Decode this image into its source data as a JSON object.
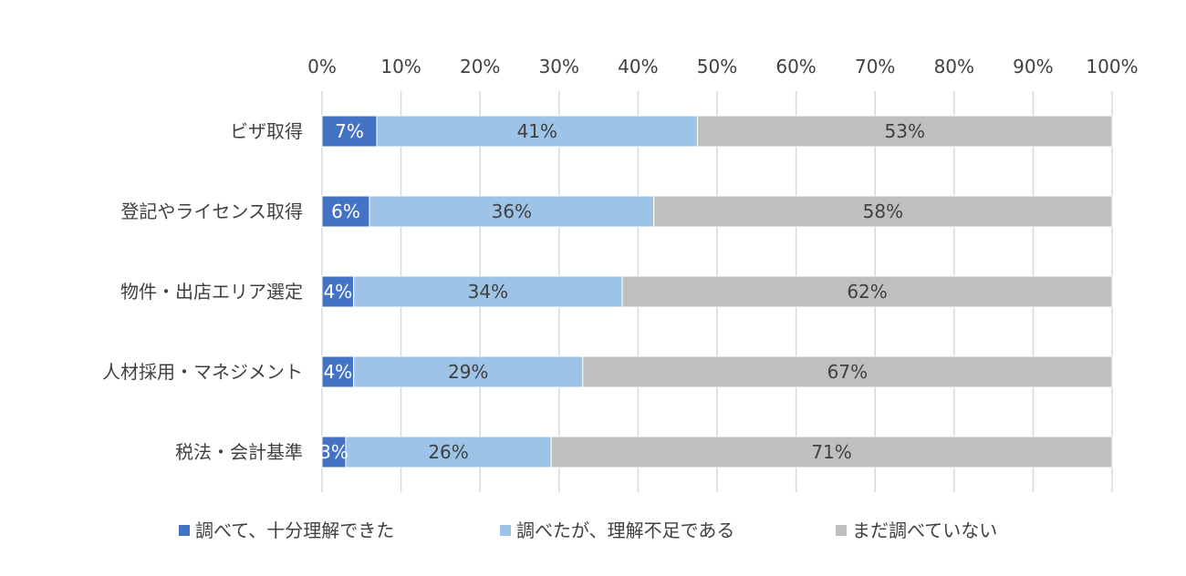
{
  "chart_data": {
    "type": "bar",
    "orientation": "horizontal",
    "stacked": "percent",
    "categories": [
      "ビザ取得",
      "登記やライセンス取得",
      "物件・出店エリア選定",
      "人材採用・マネジメント",
      "税法・会計基準"
    ],
    "series": [
      {
        "name": "調べて、十分理解できた",
        "values": [
          7,
          6,
          4,
          4,
          3
        ],
        "labels": [
          "7%",
          "6%",
          "4%",
          "4%",
          "3%"
        ],
        "color": "#4472C4",
        "label_color": "#ffffff"
      },
      {
        "name": "調べたが、理解不足である",
        "values": [
          41,
          36,
          34,
          29,
          26
        ],
        "labels": [
          "41%",
          "36%",
          "34%",
          "29%",
          "26%"
        ],
        "color": "#9DC3E6",
        "label_color": "#404040"
      },
      {
        "name": "まだ調べていない",
        "values": [
          53,
          58,
          62,
          67,
          71
        ],
        "labels": [
          "53%",
          "58%",
          "62%",
          "67%",
          "71%"
        ],
        "color": "#BFBFBF",
        "label_color": "#404040"
      }
    ],
    "x_ticks": [
      "0%",
      "10%",
      "20%",
      "30%",
      "40%",
      "50%",
      "60%",
      "70%",
      "80%",
      "90%",
      "100%"
    ],
    "xlim": [
      0,
      100
    ],
    "x_axis_position": "top",
    "grid": true,
    "gridline_color": "#D9D9D9",
    "legend_position": "bottom"
  }
}
